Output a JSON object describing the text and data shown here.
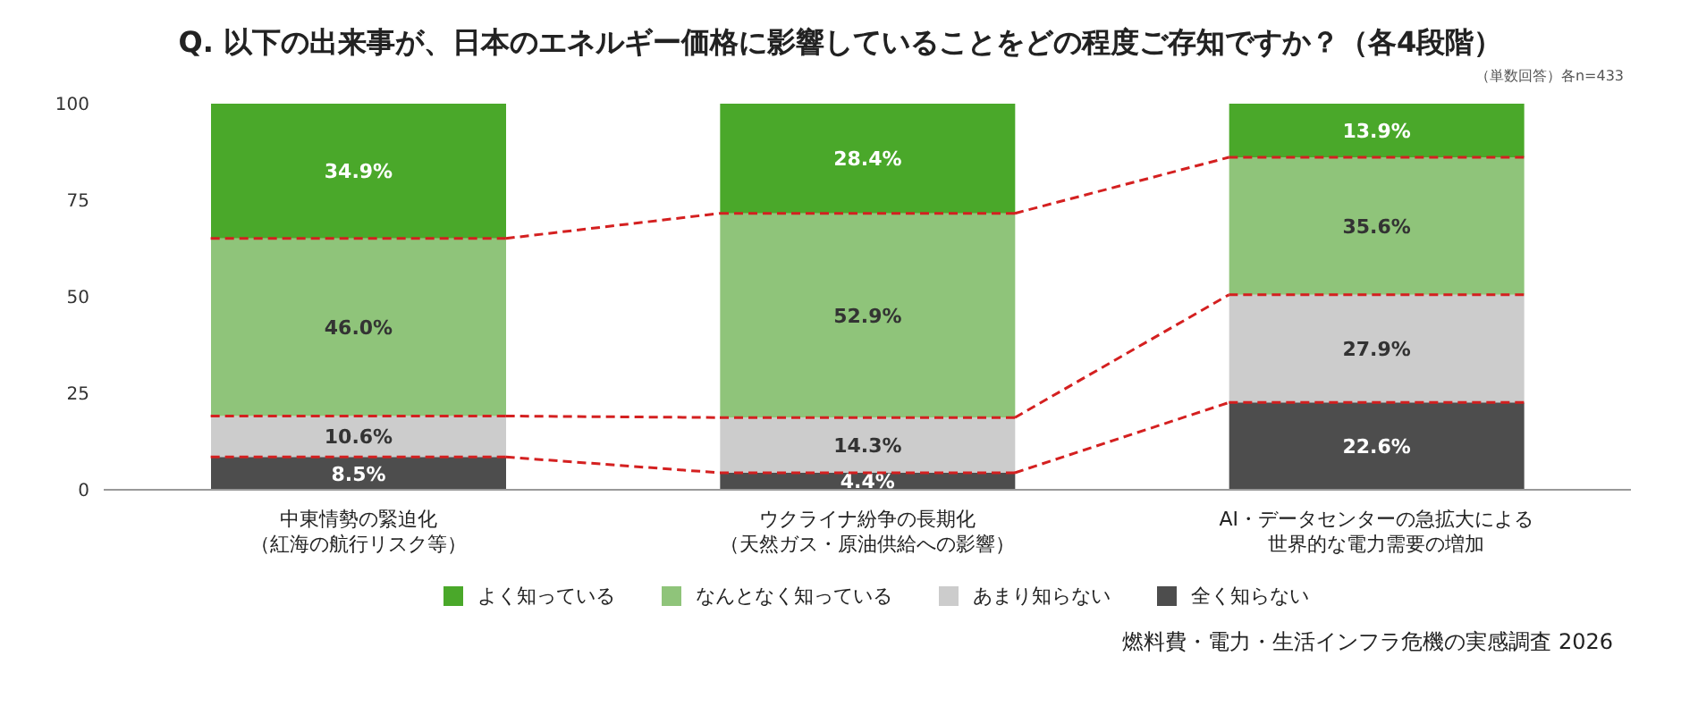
{
  "chart_data": {
    "type": "bar",
    "stacked": true,
    "title": "Q. 以下の出来事が、日本のエネルギー価格に影響していることをどの程度ご存知ですか？（各4段階）",
    "categories": [
      "中東情勢の緊迫化（紅海の航行リスク等）",
      "ウクライナ紛争の長期化（天然ガス・原油供給への影響）",
      "AI・データセンターの急拡大による世界的な電力需要の増加"
    ],
    "series": [
      {
        "name": "全く知らない",
        "color": "#4d4d4d",
        "values": [
          8.5,
          4.4,
          22.6
        ],
        "value_labels": [
          "8.5%",
          "4.4%",
          "22.6%"
        ]
      },
      {
        "name": "あまり知らない",
        "color": "#cccccc",
        "values": [
          10.6,
          14.3,
          27.9
        ],
        "value_labels": [
          "10.6%",
          "14.3%",
          "27.9%"
        ]
      },
      {
        "name": "なんとなく知っている",
        "color": "#8fc47a",
        "values": [
          46.0,
          52.9,
          35.6
        ],
        "value_labels": [
          "46.0%",
          "52.9%",
          "35.6%"
        ]
      },
      {
        "name": "よく知っている",
        "color": "#4aa82a",
        "values": [
          34.9,
          28.4,
          13.9
        ],
        "value_labels": [
          "34.9%",
          "28.4%",
          "13.9%"
        ]
      }
    ],
    "ylim": [
      0,
      100
    ],
    "yticks": [
      0,
      25,
      50,
      75,
      100
    ],
    "grid": false,
    "legend": "bottom",
    "annotations": [
      "（単数回答）各n=433",
      "燃料費・電力・生活インフラ危機の実感調査 2026"
    ]
  }
}
